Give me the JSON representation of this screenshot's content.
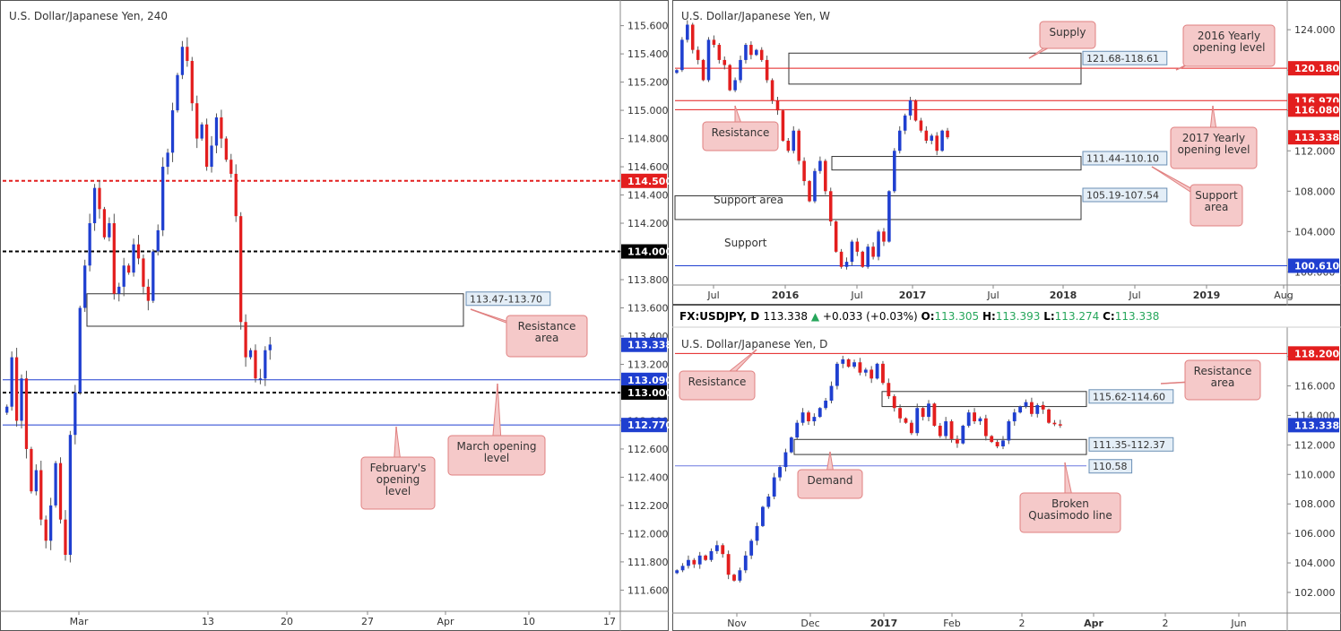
{
  "chart_data": [
    {
      "type": "candlestick",
      "title": "U.S. Dollar/Japanese Yen, 240",
      "ylim": [
        111.45,
        115.75
      ],
      "yticks": [
        "115.600",
        "115.400",
        "115.200",
        "115.000",
        "114.800",
        "114.600",
        "114.400",
        "114.200",
        "114.000",
        "113.800",
        "113.600",
        "113.400",
        "113.200",
        "113.000",
        "112.800",
        "112.600",
        "112.400",
        "112.200",
        "112.000",
        "111.800",
        "111.600"
      ],
      "xticks": [
        "Mar",
        "13",
        "20",
        "27",
        "Apr",
        "10",
        "17"
      ],
      "price_tags": [
        {
          "label": "114.500",
          "value": 114.5,
          "color": "#e31e1e"
        },
        {
          "label": "114.000",
          "value": 114.0,
          "color": "#000000"
        },
        {
          "label": "113.338",
          "value": 113.338,
          "color": "#1f3fd0"
        },
        {
          "label": "113.090",
          "value": 113.09,
          "color": "#1f3fd0"
        },
        {
          "label": "113.000",
          "value": 113.0,
          "color": "#000000"
        },
        {
          "label": "112.770",
          "value": 112.77,
          "color": "#1f3fd0"
        }
      ],
      "zones": [
        {
          "label": "113.47-113.70",
          "low": 113.47,
          "high": 113.7
        }
      ],
      "annotations": [
        "Resistance area",
        "March opening level",
        "February's opening level"
      ],
      "series": [
        {
          "close_path": [
            112.9,
            113.25,
            112.8,
            113.1,
            112.6,
            112.3,
            112.45,
            112.1,
            111.95,
            112.2,
            112.5,
            112.1,
            111.85,
            112.7,
            113.0,
            113.6,
            113.9,
            114.2,
            114.45,
            114.3,
            114.1,
            114.2,
            113.7,
            113.75,
            113.9,
            113.85,
            114.05,
            113.95,
            113.75,
            113.65,
            114.0,
            114.15,
            114.6,
            114.7,
            115.0,
            115.25,
            115.45,
            115.35,
            115.05,
            114.8,
            114.9,
            114.6,
            114.75,
            114.95,
            114.8,
            114.65,
            114.55,
            114.25,
            113.5,
            113.25,
            113.3,
            113.1,
            113.1,
            113.3,
            113.34
          ]
        }
      ]
    },
    {
      "type": "candlestick",
      "title": "U.S. Dollar/Japanese Yen, W",
      "ylim": [
        98.7,
        126.5
      ],
      "yticks": [
        "124.000",
        "120.000",
        "116.000",
        "112.000",
        "108.000",
        "104.000",
        "100.000"
      ],
      "xticks": [
        "Jul",
        "2016",
        "Jul",
        "2017",
        "Jul",
        "2018",
        "Jul",
        "2019",
        "Aug"
      ],
      "price_tags": [
        {
          "label": "120.180",
          "value": 120.18,
          "color": "#e31e1e"
        },
        {
          "label": "116.970",
          "value": 116.97,
          "color": "#e31e1e"
        },
        {
          "label": "116.080",
          "value": 116.08,
          "color": "#e31e1e"
        },
        {
          "label": "113.338",
          "value": 113.338,
          "color": "#e31e1e"
        },
        {
          "label": "100.610",
          "value": 100.61,
          "color": "#1f3fd0"
        }
      ],
      "zones": [
        {
          "label": "121.68-118.61",
          "low": 118.61,
          "high": 121.68
        },
        {
          "label": "111.44-110.10",
          "low": 110.1,
          "high": 111.44
        },
        {
          "label": "105.19-107.54",
          "low": 105.19,
          "high": 107.54
        }
      ],
      "annotations": [
        "Supply",
        "2016 Yearly opening level",
        "Resistance",
        "2017 Yearly opening level",
        "Support area",
        "Support area",
        "Support"
      ],
      "series": [
        {
          "close_path": [
            120,
            123,
            124.5,
            122,
            121,
            119,
            123,
            122.5,
            121,
            120.5,
            118,
            119,
            121,
            122.5,
            121.5,
            122,
            121,
            119,
            117,
            116,
            113,
            112,
            114,
            111,
            109,
            107,
            110,
            111,
            108,
            105,
            102,
            100.5,
            101,
            103,
            102,
            100.5,
            102.5,
            101.5,
            104,
            103,
            108,
            112,
            114,
            115.5,
            117,
            115,
            114,
            113,
            113.5,
            112,
            114,
            113.34
          ]
        }
      ]
    },
    {
      "type": "candlestick",
      "title": "U.S. Dollar/Japanese Yen, D",
      "ylim": [
        100.6,
        119.8
      ],
      "yticks": [
        "118.000",
        "116.000",
        "114.000",
        "112.000",
        "110.000",
        "108.000",
        "106.000",
        "104.000",
        "102.000"
      ],
      "xticks": [
        "Nov",
        "Dec",
        "2017",
        "Feb",
        "2",
        "Apr",
        "2",
        "Jun"
      ],
      "price_tags": [
        {
          "label": "118.200",
          "value": 118.2,
          "color": "#e31e1e"
        },
        {
          "label": "113.338",
          "value": 113.338,
          "color": "#1f3fd0"
        }
      ],
      "zones": [
        {
          "label": "115.62-114.60",
          "low": 114.6,
          "high": 115.62
        },
        {
          "label": "111.35-112.37",
          "low": 111.35,
          "high": 112.37
        }
      ],
      "levels": [
        {
          "label": "110.58",
          "value": 110.58
        }
      ],
      "annotations": [
        "Resistance",
        "Resistance area",
        "Demand",
        "Broken Quasimodo line"
      ],
      "series": [
        {
          "close_path": [
            103.5,
            103.8,
            104.2,
            103.9,
            104.5,
            104.2,
            104.8,
            105.2,
            104.6,
            103.2,
            102.8,
            103.5,
            104.5,
            105.5,
            106.5,
            107.8,
            108.5,
            109.8,
            110.5,
            111.5,
            112.5,
            113.5,
            114.2,
            113.6,
            113.9,
            114.5,
            115,
            116,
            117.5,
            117.8,
            117.3,
            117.6,
            116.9,
            117.1,
            116.5,
            117.5,
            116.2,
            115.3,
            114.5,
            113.8,
            113.5,
            112.8,
            114.5,
            113.9,
            114.8,
            113.3,
            112.6,
            113.6,
            112.4,
            112.1,
            113.3,
            114.2,
            113.6,
            113.8,
            112.6,
            112.2,
            111.9,
            112.3,
            113.6,
            114.2,
            114.6,
            114.9,
            114.1,
            114.7,
            114.4,
            113.5,
            113.4,
            113.34
          ]
        }
      ]
    }
  ],
  "header": {
    "symbol": "FX:USDJPY, D",
    "last": "113.338",
    "change": "+0.033 (+0.03%)",
    "o_label": "O:",
    "o": "113.305",
    "h_label": "H:",
    "h": "113.393",
    "l_label": "L:",
    "l": "113.274",
    "c_label": "C:",
    "c": "113.338"
  },
  "colors": {
    "bull": "#1f3fd0",
    "bear": "#e31e1e",
    "callout_fill": "#f5c9c9",
    "callout_stroke": "#e08080",
    "zone_tag_fill": "#e4eef7"
  }
}
